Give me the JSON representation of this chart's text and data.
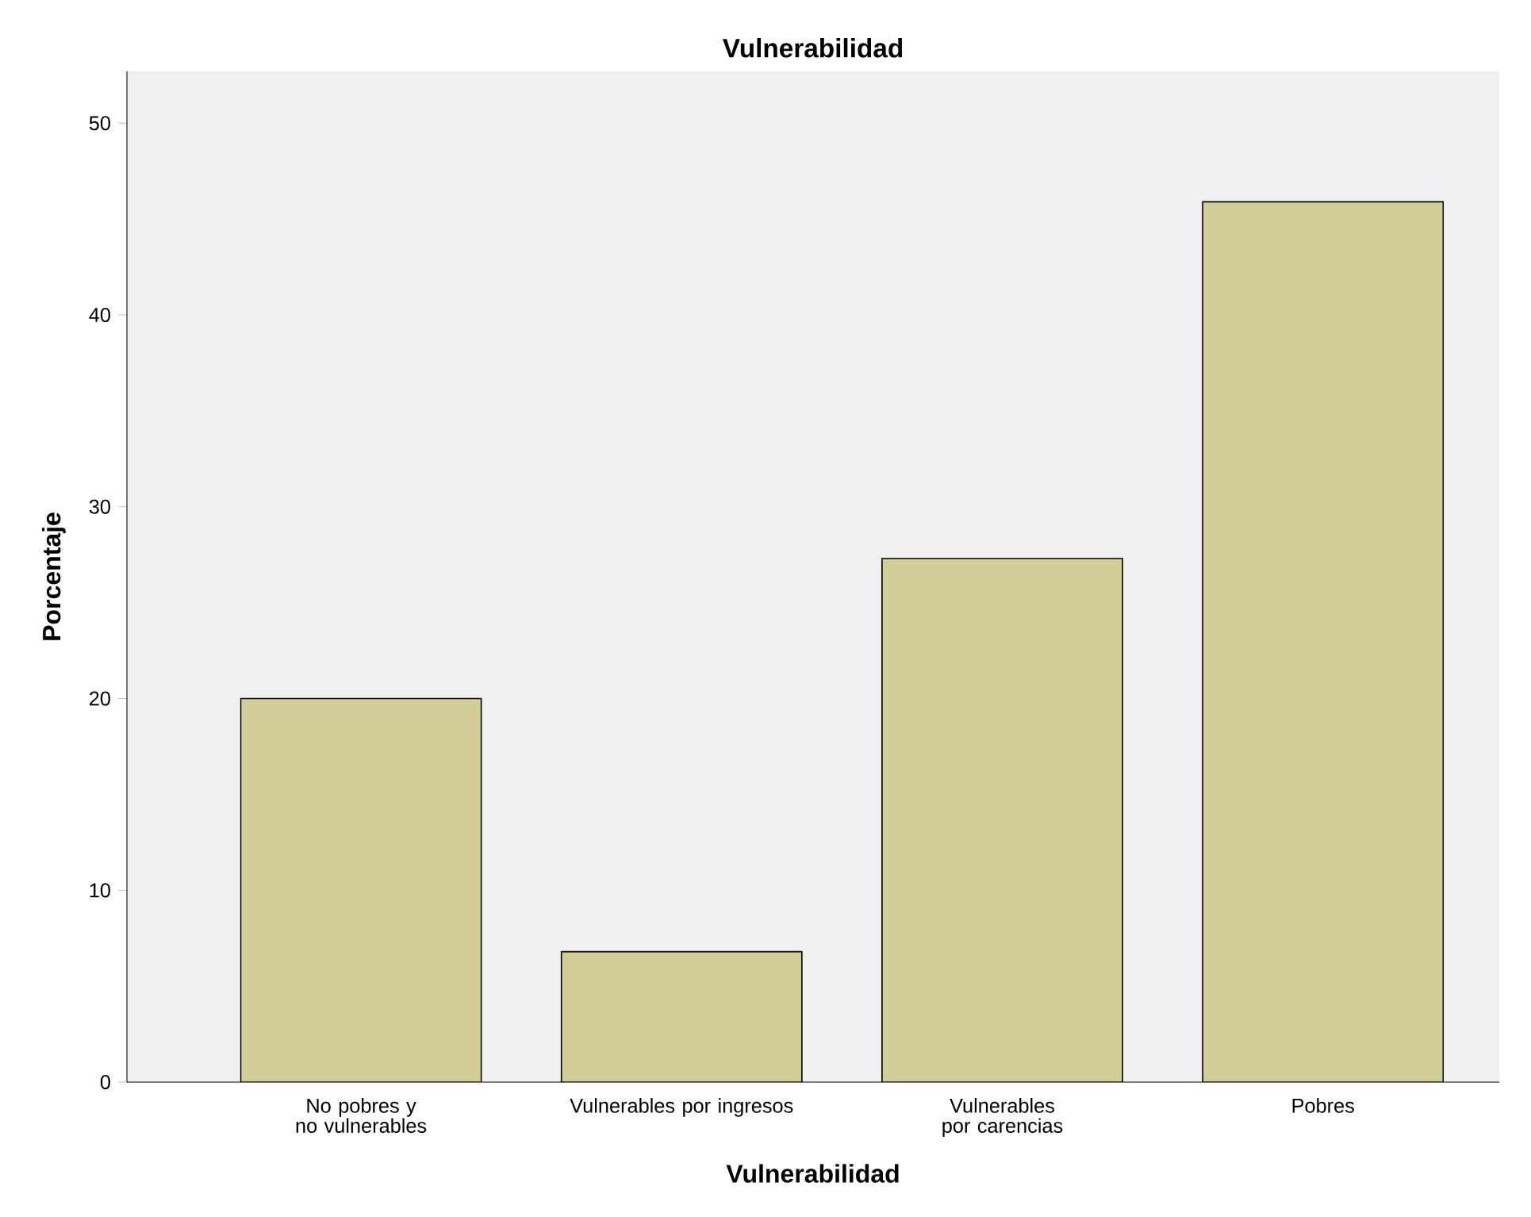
{
  "chart_data": {
    "type": "bar",
    "title": "Vulnerabilidad",
    "xlabel": "Vulnerabilidad",
    "ylabel": "Porcentaje",
    "categories": [
      "No pobres y no vulnerables",
      "Vulnerables por ingresos",
      "Vulnerables por carencias",
      "Pobres"
    ],
    "values": [
      20.0,
      6.8,
      27.3,
      45.9
    ],
    "color": "#d3ce97",
    "ylim": [
      0,
      52.7
    ],
    "yticks": [
      0,
      10,
      20,
      30,
      40,
      50
    ],
    "grid": false
  }
}
